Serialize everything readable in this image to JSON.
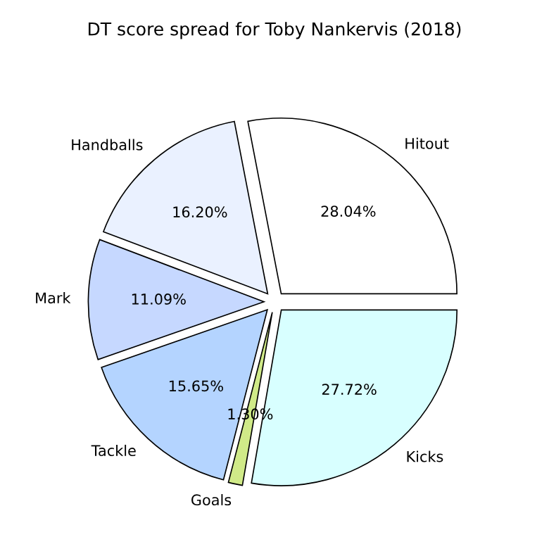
{
  "chart_data": {
    "type": "pie",
    "title": "DT score spread for Toby Nankervis (2018)",
    "categories": [
      "Hitout",
      "Handballs",
      "Mark",
      "Tackle",
      "Goals",
      "Kicks"
    ],
    "values": [
      28.04,
      16.2,
      11.09,
      15.65,
      1.3,
      27.72
    ],
    "colors": [
      "#ffffff",
      "#eaf1ff",
      "#c6d8ff",
      "#b4d4ff",
      "#d0ea88",
      "#d8ffff"
    ],
    "value_labels": [
      "28.04%",
      "16.20%",
      "11.09%",
      "15.65%",
      "1.30%",
      "27.72%"
    ]
  }
}
